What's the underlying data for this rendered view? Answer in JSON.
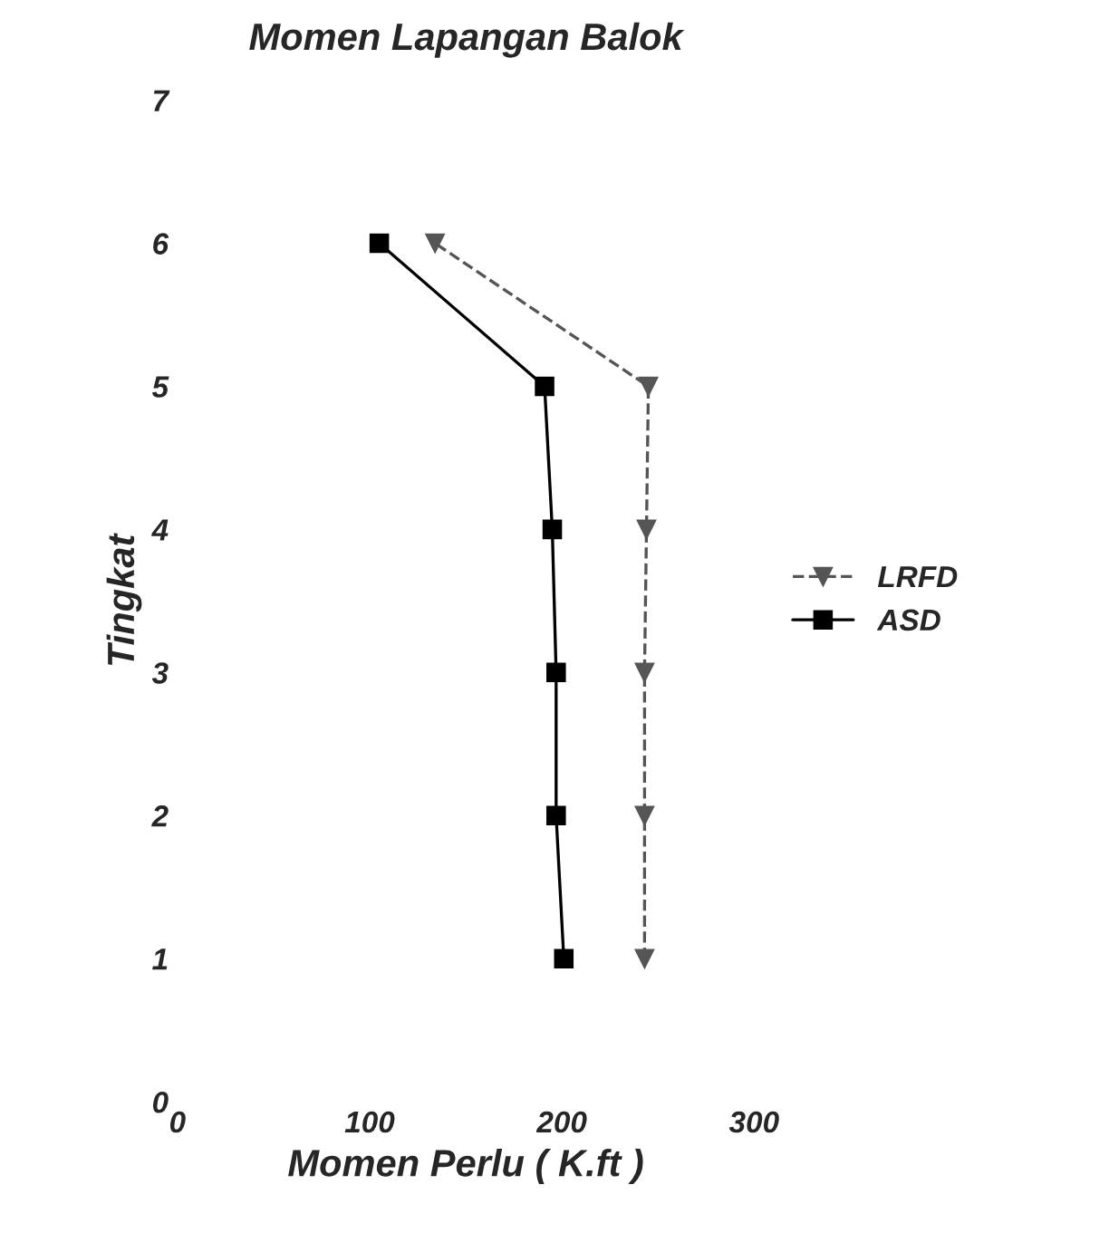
{
  "chart_data": {
    "type": "line",
    "title": "Momen Lapangan Balok",
    "xlabel": "Momen Perlu ( K.ft )",
    "ylabel": "Tingkat",
    "xlim": [
      0,
      300
    ],
    "xticks": [
      0,
      100,
      200,
      300
    ],
    "ylim": [
      0,
      7
    ],
    "yticks": [
      0,
      1,
      2,
      3,
      4,
      5,
      6,
      7
    ],
    "legend": "right",
    "grid": false,
    "series": [
      {
        "name": "LRFD",
        "color": "#555555",
        "marker": "triangle",
        "line_style": "dashed",
        "x": [
          243,
          243,
          243,
          244,
          245,
          134
        ],
        "values": [
          1,
          2,
          3,
          4,
          5,
          6
        ]
      },
      {
        "name": "ASD",
        "color": "#000000",
        "marker": "square",
        "line_style": "solid",
        "x": [
          201,
          197,
          197,
          195,
          191,
          105
        ],
        "values": [
          1,
          2,
          3,
          4,
          5,
          6
        ]
      }
    ]
  }
}
